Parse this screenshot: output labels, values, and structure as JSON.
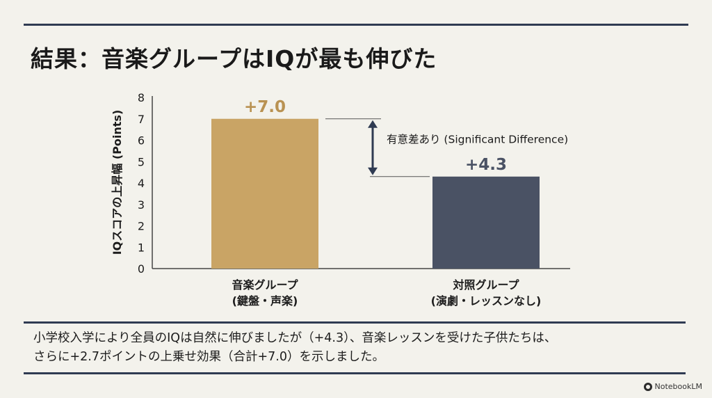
{
  "title": "結果：音楽グループはIQが最も伸びた",
  "chart_data": {
    "type": "bar",
    "ylabel": "IQスコアの上昇幅 (Points)",
    "ylim": [
      0,
      8
    ],
    "yticks": [
      "0",
      "1",
      "2",
      "3",
      "4",
      "5",
      "6",
      "7",
      "8"
    ],
    "categories": [
      {
        "line1": "音楽グループ",
        "line2": "(鍵盤・声楽)"
      },
      {
        "line1": "対照グループ",
        "line2": "(演劇・レッスンなし)"
      }
    ],
    "values": [
      7.0,
      4.3
    ],
    "value_labels": [
      "+7.0",
      "+4.3"
    ],
    "colors": [
      "#c9a465",
      "#4a5264"
    ],
    "label_colors": [
      "#b99252",
      "#4a5264"
    ],
    "annotation": "有意差あり (Significant Difference)"
  },
  "summary": {
    "line1": "小学校入学により全員のIQは自然に伸びましたが（+4.3）、音楽レッスンを受けた子供たちは、",
    "line2": "さらに+2.7ポイントの上乗せ効果（合計+7.0）を示しました。"
  },
  "brand": "NotebookLM"
}
